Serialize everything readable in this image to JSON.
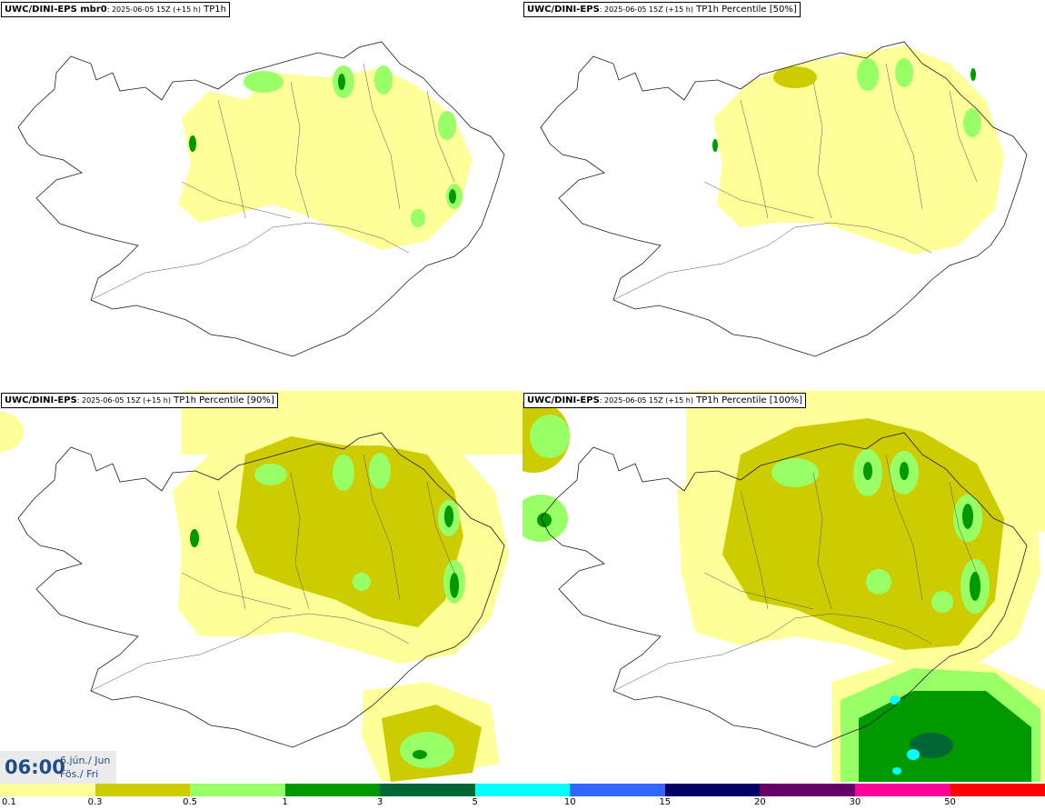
{
  "panels": [
    {
      "title_bold": "UWC/DINI-EPS mbr0",
      "title_sub": ": 2025-06-05 15Z (+15 h)",
      "title_var": " TP1h"
    },
    {
      "title_bold": "UWC/DINI-EPS",
      "title_sub": ": 2025-06-05 15Z (+15 h)",
      "title_var": " TP1h Percentile [50%]"
    },
    {
      "title_bold": "UWC/DINI-EPS",
      "title_sub": ": 2025-06-05 15Z (+15 h)",
      "title_var": " TP1h Percentile [90%]"
    },
    {
      "title_bold": "UWC/DINI-EPS",
      "title_sub": ": 2025-06-05 15Z (+15 h)",
      "title_var": " TP1h Percentile [100%]"
    }
  ],
  "timebox": {
    "time": "06:00",
    "date_line1": "6.jún./ Jun",
    "date_line2": "Fös./ Fri"
  },
  "legend": {
    "colors": [
      "#ffff99",
      "#cccc00",
      "#99ff66",
      "#009900",
      "#006633",
      "#00ffff",
      "#3366ff",
      "#000066",
      "#660066",
      "#ff0099",
      "#ff0000"
    ],
    "labels": [
      "0.1",
      "0.3",
      "0.5",
      "1",
      "3",
      "5",
      "10",
      "15",
      "20",
      "30",
      "50"
    ]
  }
}
